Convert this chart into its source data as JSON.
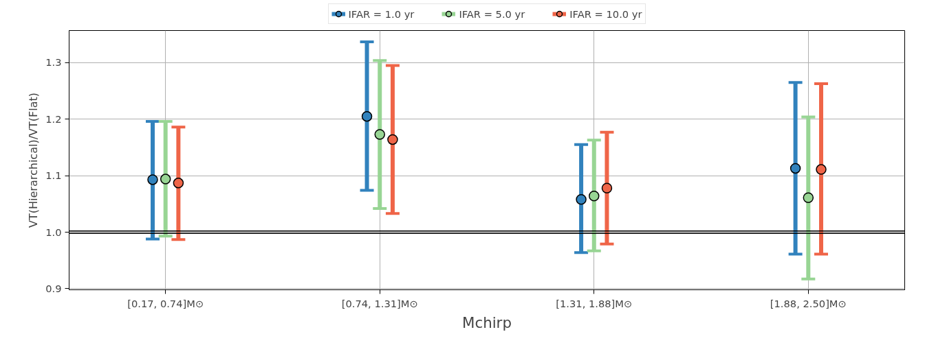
{
  "chart_data": {
    "type": "scatter",
    "xlabel": "Mchirp",
    "ylabel": "VT(Hierarchical)/VT(Flat)",
    "categories": [
      "[0.17, 0.74]M⊙",
      "[0.74, 1.31]M⊙",
      "[1.31, 1.88]M⊙",
      "[1.88, 2.50]M⊙"
    ],
    "ylim": [
      0.898,
      1.357
    ],
    "yticks": [
      {
        "value": 0.9,
        "label": "0.9"
      },
      {
        "value": 1.0,
        "label": "1.0"
      },
      {
        "value": 1.1,
        "label": "1.1"
      },
      {
        "value": 1.2,
        "label": "1.2"
      },
      {
        "value": 1.3,
        "label": "1.3"
      }
    ],
    "grid": true,
    "legend": "top",
    "marker": "circle",
    "ref_lines": [
      {
        "axis": "y",
        "value": 1.002,
        "color": "#000000"
      },
      {
        "axis": "y",
        "value": 0.998,
        "color": "#000000"
      }
    ],
    "series": [
      {
        "name": "IFAR = 1.0 yr",
        "color": "#3182bd",
        "values": [
          1.093,
          1.205,
          1.058,
          1.113
        ],
        "errors": [
          [
            0.988,
            1.196
          ],
          [
            1.074,
            1.337
          ],
          [
            0.964,
            1.155
          ],
          [
            0.961,
            1.265
          ]
        ]
      },
      {
        "name": "IFAR = 5.0 yr",
        "color": "#98d594",
        "values": [
          1.094,
          1.173,
          1.064,
          1.061
        ],
        "errors": [
          [
            0.993,
            1.196
          ],
          [
            1.042,
            1.304
          ],
          [
            0.967,
            1.163
          ],
          [
            0.917,
            1.204
          ]
        ]
      },
      {
        "name": "IFAR = 10.0 yr",
        "color": "#ef6548",
        "values": [
          1.087,
          1.164,
          1.078,
          1.111
        ],
        "errors": [
          [
            0.987,
            1.186
          ],
          [
            1.033,
            1.295
          ],
          [
            0.979,
            1.177
          ],
          [
            0.961,
            1.263
          ]
        ]
      }
    ]
  }
}
